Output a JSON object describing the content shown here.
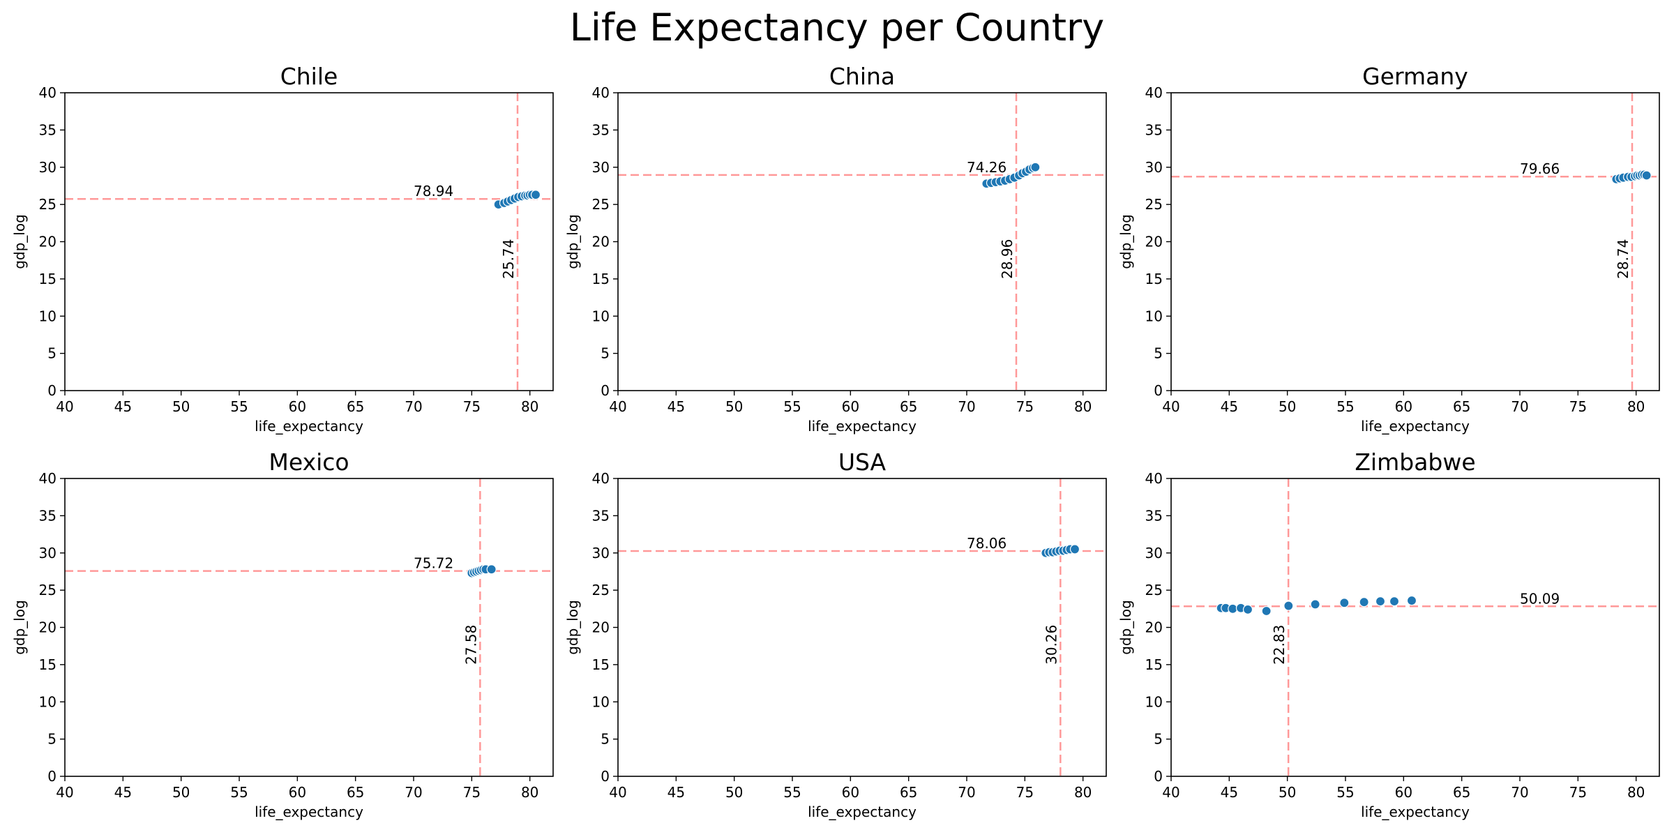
{
  "title": "Life Expectancy per Country",
  "colors": {
    "points": "#1f77b4",
    "reference_lines": "#ff9999",
    "axes": "#000000"
  },
  "chart_data": [
    {
      "type": "scatter",
      "title": "Chile",
      "xlabel": "life_expectancy",
      "ylabel": "gdp_log",
      "xlim": [
        40,
        82
      ],
      "ylim": [
        0,
        40
      ],
      "xticks": [
        40,
        45,
        50,
        55,
        60,
        65,
        70,
        75,
        80
      ],
      "yticks": [
        0,
        5,
        10,
        15,
        20,
        25,
        30,
        35,
        40
      ],
      "x": [
        77.3,
        77.8,
        78.1,
        78.4,
        78.7,
        79.0,
        79.3,
        79.6,
        79.8,
        80.0,
        80.2,
        80.5
      ],
      "y": [
        25.0,
        25.2,
        25.4,
        25.6,
        25.8,
        26.0,
        26.1,
        26.2,
        26.2,
        26.3,
        26.3,
        26.3
      ],
      "mean_life_expectancy": 78.94,
      "mean_gdp_log": 25.74,
      "annotations": [
        "78.94",
        "25.74"
      ]
    },
    {
      "type": "scatter",
      "title": "China",
      "xlabel": "life_expectancy",
      "ylabel": "gdp_log",
      "xlim": [
        40,
        82
      ],
      "ylim": [
        0,
        40
      ],
      "xticks": [
        40,
        45,
        50,
        55,
        60,
        65,
        70,
        75,
        80
      ],
      "yticks": [
        0,
        5,
        10,
        15,
        20,
        25,
        30,
        35,
        40
      ],
      "x": [
        71.7,
        72.1,
        72.5,
        72.9,
        73.3,
        73.7,
        74.1,
        74.5,
        74.8,
        75.1,
        75.4,
        75.7,
        75.9
      ],
      "y": [
        27.8,
        27.9,
        28.0,
        28.1,
        28.2,
        28.4,
        28.6,
        28.9,
        29.2,
        29.4,
        29.7,
        29.9,
        30.0
      ],
      "mean_life_expectancy": 74.26,
      "mean_gdp_log": 28.96,
      "annotations": [
        "74.26",
        "28.96"
      ]
    },
    {
      "type": "scatter",
      "title": "Germany",
      "xlabel": "life_expectancy",
      "ylabel": "gdp_log",
      "xlim": [
        40,
        82
      ],
      "ylim": [
        0,
        40
      ],
      "xticks": [
        40,
        45,
        50,
        55,
        60,
        65,
        70,
        75,
        80
      ],
      "yticks": [
        0,
        5,
        10,
        15,
        20,
        25,
        30,
        35,
        40
      ],
      "x": [
        78.3,
        78.6,
        78.9,
        79.3,
        79.6,
        79.9,
        80.1,
        80.3,
        80.5,
        80.7,
        80.9
      ],
      "y": [
        28.4,
        28.5,
        28.6,
        28.7,
        28.7,
        28.8,
        28.9,
        28.9,
        29.0,
        29.0,
        28.9
      ],
      "mean_life_expectancy": 79.66,
      "mean_gdp_log": 28.74,
      "annotations": [
        "79.66",
        "28.74"
      ]
    },
    {
      "type": "scatter",
      "title": "Mexico",
      "xlabel": "life_expectancy",
      "ylabel": "gdp_log",
      "xlim": [
        40,
        82
      ],
      "ylim": [
        0,
        40
      ],
      "xticks": [
        40,
        45,
        50,
        55,
        60,
        65,
        70,
        75,
        80
      ],
      "yticks": [
        0,
        5,
        10,
        15,
        20,
        25,
        30,
        35,
        40
      ],
      "x": [
        75.0,
        75.2,
        75.4,
        75.6,
        75.8,
        76.0,
        76.2,
        76.7
      ],
      "y": [
        27.3,
        27.4,
        27.5,
        27.6,
        27.7,
        27.8,
        27.8,
        27.8
      ],
      "mean_life_expectancy": 75.72,
      "mean_gdp_log": 27.58,
      "annotations": [
        "75.72",
        "27.58"
      ]
    },
    {
      "type": "scatter",
      "title": "USA",
      "xlabel": "life_expectancy",
      "ylabel": "gdp_log",
      "xlim": [
        40,
        82
      ],
      "ylim": [
        0,
        40
      ],
      "xticks": [
        40,
        45,
        50,
        55,
        60,
        65,
        70,
        75,
        80
      ],
      "yticks": [
        0,
        5,
        10,
        15,
        20,
        25,
        30,
        35,
        40
      ],
      "x": [
        76.8,
        77.1,
        77.4,
        77.7,
        78.0,
        78.3,
        78.6,
        78.9,
        79.3
      ],
      "y": [
        30.0,
        30.1,
        30.1,
        30.2,
        30.3,
        30.3,
        30.4,
        30.5,
        30.5
      ],
      "mean_life_expectancy": 78.06,
      "mean_gdp_log": 30.26,
      "annotations": [
        "78.06",
        "30.26"
      ]
    },
    {
      "type": "scatter",
      "title": "Zimbabwe",
      "xlabel": "life_expectancy",
      "ylabel": "gdp_log",
      "xlim": [
        40,
        82
      ],
      "ylim": [
        0,
        40
      ],
      "xticks": [
        40,
        45,
        50,
        55,
        60,
        65,
        70,
        75,
        80
      ],
      "yticks": [
        0,
        5,
        10,
        15,
        20,
        25,
        30,
        35,
        40
      ],
      "x": [
        44.3,
        44.7,
        45.3,
        46.0,
        46.6,
        48.2,
        50.1,
        52.4,
        54.9,
        56.6,
        58.0,
        59.2,
        60.7
      ],
      "y": [
        22.6,
        22.6,
        22.5,
        22.6,
        22.4,
        22.2,
        22.9,
        23.1,
        23.3,
        23.4,
        23.5,
        23.5,
        23.6
      ],
      "mean_life_expectancy": 50.09,
      "mean_gdp_log": 22.83,
      "annotations": [
        "50.09",
        "22.83"
      ]
    }
  ]
}
